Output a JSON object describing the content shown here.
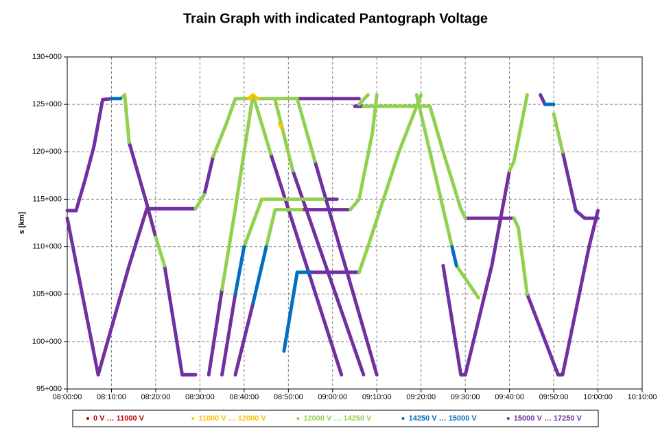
{
  "chart_data": {
    "type": "line",
    "title": "Train Graph with indicated Pantograph Voltage",
    "y_label": "s [km]",
    "xlim": [
      "08:00:00",
      "10:10:00"
    ],
    "xticks": [
      "08:00:00",
      "08:10:00",
      "08:20:00",
      "08:30:00",
      "08:40:00",
      "08:50:00",
      "09:00:00",
      "09:10:00",
      "09:20:00",
      "09:30:00",
      "09:40:00",
      "09:50:00",
      "10:00:00",
      "10:10:00"
    ],
    "ylim": [
      95,
      130
    ],
    "yticks": [
      {
        "value": 95,
        "label": "95+000"
      },
      {
        "value": 100,
        "label": "100+000"
      },
      {
        "value": 105,
        "label": "105+000"
      },
      {
        "value": 110,
        "label": "110+000"
      },
      {
        "value": 115,
        "label": "115+000"
      },
      {
        "value": 120,
        "label": "120+000"
      },
      {
        "value": 125,
        "label": "125+000"
      },
      {
        "value": 130,
        "label": "130+000"
      }
    ],
    "grid": true,
    "legend": "bottom",
    "series": [
      {
        "name": "0 V … 11000 V",
        "color": "#c00000",
        "x": [],
        "values": []
      },
      {
        "name": "15000 V … 17250 V",
        "color": "#7030a0",
        "x": [
          "08:00:00",
          "08:02:00",
          "08:04:00",
          "08:06:00",
          "08:08:00",
          "08:10:00",
          null,
          "08:00:00",
          "08:07:00",
          "08:14:00",
          "08:18:00",
          "08:29:00",
          null,
          "08:14:00",
          "08:18:00",
          "08:20:00",
          null,
          "08:22:00",
          "08:26:00",
          "08:29:00",
          null,
          "08:31:00",
          "08:33:00",
          null,
          "08:32:00",
          "08:35:00",
          null,
          "08:35:00",
          "08:38:00",
          null,
          "08:38:00",
          "08:42:00",
          null,
          "08:46:00",
          "09:02:00",
          null,
          "08:51:00",
          "09:07:00",
          null,
          "08:56:00",
          "09:10:00",
          null,
          "08:58:00",
          "09:01:00",
          null,
          "08:53:00",
          "09:04:00",
          null,
          "08:55:00",
          "09:06:00",
          null,
          "08:52:00",
          "09:06:00",
          null,
          "09:05:00",
          "09:07:00",
          null,
          "09:30:00",
          "09:41:00",
          null,
          "09:44:00",
          "09:51:00",
          "09:52:00",
          "09:58:00",
          "10:00:00",
          null,
          "09:25:00",
          "09:29:00",
          "09:30:00",
          "09:36:00",
          "09:40:00",
          null,
          "09:47:00",
          "09:48:00",
          null,
          "09:52:00",
          "09:55:00",
          "09:57:00",
          "10:00:00"
        ],
        "values": [
          113.8,
          113.8,
          117,
          120.5,
          125.5,
          125.6,
          null,
          113,
          96.5,
          108,
          114,
          114,
          null,
          121,
          114.5,
          111,
          null,
          108,
          96.5,
          96.5,
          null,
          115.5,
          119.5,
          null,
          96.5,
          105.5,
          null,
          96.5,
          105,
          null,
          96.5,
          104,
          null,
          119.8,
          96.5,
          null,
          118,
          96.5,
          null,
          119,
          96.5,
          null,
          115,
          115,
          null,
          113.9,
          113.9,
          null,
          107.3,
          107.3,
          null,
          125.6,
          125.6,
          null,
          124.8,
          124.8,
          null,
          113,
          113,
          null,
          105,
          96.5,
          96.5,
          110,
          113.8,
          null,
          108,
          96.5,
          96.5,
          108,
          118,
          null,
          126,
          125,
          null,
          120,
          113.8,
          113,
          113
        ]
      },
      {
        "name": "12000 V … 14250 V",
        "color": "#92d050",
        "x": [
          "08:12:00",
          "08:13:00",
          "08:14:00",
          null,
          "08:20:00",
          "08:22:00",
          null,
          "08:29:00",
          "08:31:00",
          null,
          "08:33:00",
          "08:36:00",
          "08:38:00",
          "08:41:00",
          null,
          "08:43:00",
          "08:52:00",
          null,
          "08:35:00",
          "08:38:00",
          "08:42:00",
          "08:46:00",
          null,
          "08:40:00",
          "08:44:00",
          "08:58:00",
          null,
          "08:47:00",
          "08:51:00",
          null,
          "08:52:00",
          "08:56:00",
          null,
          "08:45:00",
          "08:47:00",
          "08:53:00",
          null,
          "09:04:00",
          "09:06:00",
          "09:09:00",
          "09:10:00",
          null,
          "09:06:00",
          "09:08:00",
          "09:15:00",
          "09:20:00",
          null,
          "09:07:00",
          "09:22:00",
          "09:25:00",
          "09:29:00",
          "09:30:00",
          null,
          "09:41:00",
          "09:42:00",
          "09:44:00",
          null,
          "09:19:00",
          "09:23:00",
          "09:27:00",
          null,
          "09:28:00",
          "09:33:00",
          null,
          "09:40:00",
          "09:41:00",
          "09:44:00",
          null,
          "09:50:00",
          "09:52:00",
          null,
          "09:06:00",
          "09:08:00"
        ],
        "values": [
          125.6,
          126,
          121,
          null,
          111,
          108,
          null,
          114,
          115.5,
          null,
          119.5,
          123,
          125.6,
          125.6,
          null,
          125.6,
          125.6,
          null,
          105.5,
          114,
          126,
          119.8,
          null,
          110,
          115,
          115,
          null,
          125.5,
          118,
          null,
          125.6,
          119,
          null,
          110,
          113.9,
          113.9,
          null,
          113.9,
          115,
          122,
          126,
          null,
          107.3,
          110,
          120,
          126,
          null,
          124.8,
          124.8,
          120,
          114,
          113,
          null,
          113,
          112,
          105,
          null,
          126,
          118,
          110,
          null,
          108,
          104.6,
          null,
          118,
          119,
          126,
          null,
          124,
          120,
          null,
          125,
          126
        ]
      },
      {
        "name": "14250 V … 15000 V",
        "color": "#0070c0",
        "x": [
          "08:10:00",
          "08:12:00",
          null,
          "08:38:00",
          "08:40:00",
          null,
          "08:42:00",
          "08:45:00",
          null,
          "08:49:00",
          "08:52:00",
          "08:55:00",
          null,
          "09:48:00",
          "09:50:00",
          null,
          "09:27:00",
          "09:28:00"
        ],
        "values": [
          125.6,
          125.6,
          null,
          105,
          110,
          null,
          104,
          110,
          null,
          99,
          107.3,
          107.3,
          null,
          125,
          125,
          null,
          110,
          108
        ]
      },
      {
        "name": "11000 V … 12000 V",
        "color": "#ffc000",
        "x": [
          "08:41:00",
          "08:42:00",
          "08:43:00",
          null,
          "08:48:00",
          "08:48:30"
        ],
        "values": [
          125.6,
          126,
          125.6,
          null,
          123,
          122.5
        ]
      }
    ]
  }
}
